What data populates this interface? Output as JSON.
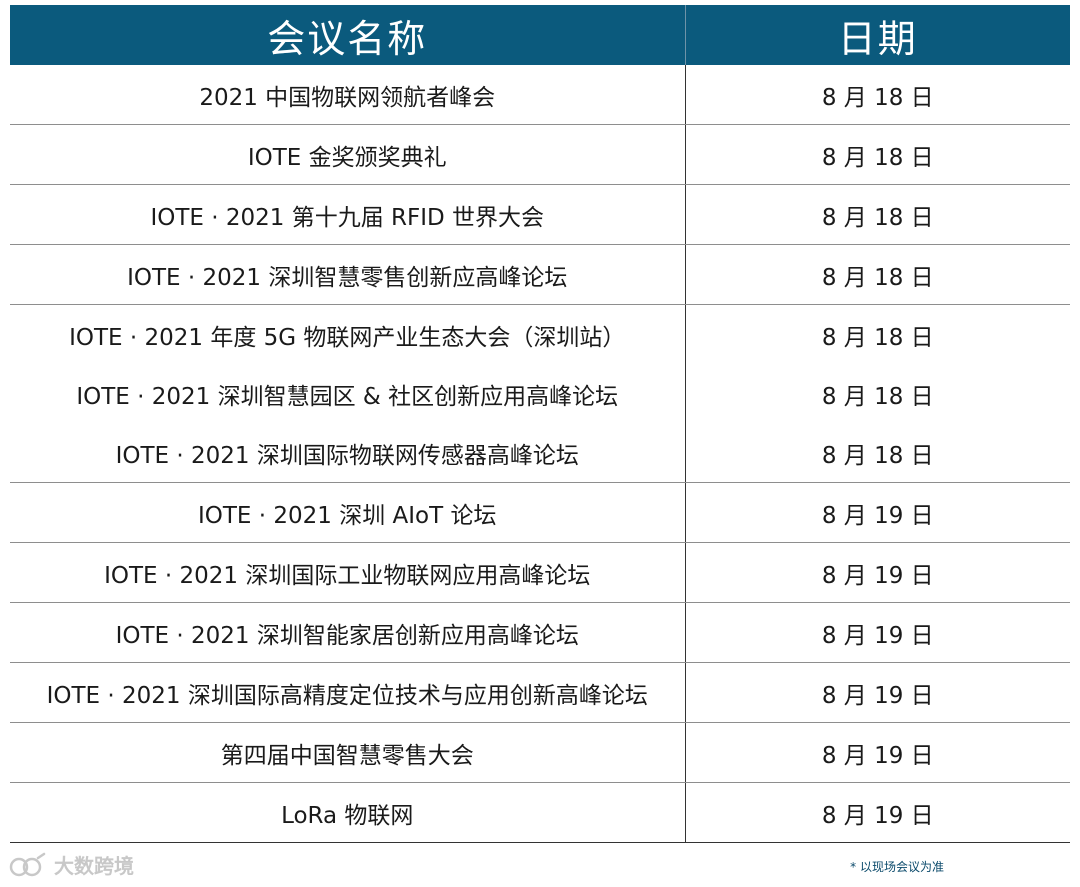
{
  "header": {
    "name": "会议名称",
    "date": "日期"
  },
  "rows": [
    {
      "name": "2021 中国物联网领航者峰会",
      "date": "8 月 18 日"
    },
    {
      "name": "IOTE 金奖颁奖典礼",
      "date": "8 月 18 日"
    },
    {
      "name": "IOTE · 2021 第十九届 RFID 世界大会",
      "date": "8 月 18 日"
    },
    {
      "name": "IOTE · 2021 深圳智慧零售创新应高峰论坛",
      "date": "8 月 18 日"
    },
    {
      "name": "IOTE · 2021 年度 5G 物联网产业生态大会（深圳站）",
      "date": "8 月 18 日"
    },
    {
      "name": "IOTE · 2021 深圳智慧园区 & 社区创新应用高峰论坛",
      "date": "8 月 18 日"
    },
    {
      "name": "IOTE · 2021 深圳国际物联网传感器高峰论坛",
      "date": "8 月 18 日"
    },
    {
      "name": "IOTE · 2021 深圳 AIoT 论坛",
      "date": "8 月 19 日"
    },
    {
      "name": "IOTE · 2021 深圳国际工业物联网应用高峰论坛",
      "date": "8 月 19 日"
    },
    {
      "name": "IOTE · 2021 深圳智能家居创新应用高峰论坛",
      "date": "8 月 19 日"
    },
    {
      "name": "IOTE · 2021 深圳国际高精度定位技术与应用创新高峰论坛",
      "date": "8 月 19 日"
    },
    {
      "name": "第四届中国智慧零售大会",
      "date": "8 月 19 日"
    },
    {
      "name": "LoRa 物联网",
      "date": "8 月 19 日"
    }
  ],
  "watermark": {
    "text": "大数跨境",
    "icon": "logo-icon"
  },
  "footnote": "* 以现场会议为准"
}
